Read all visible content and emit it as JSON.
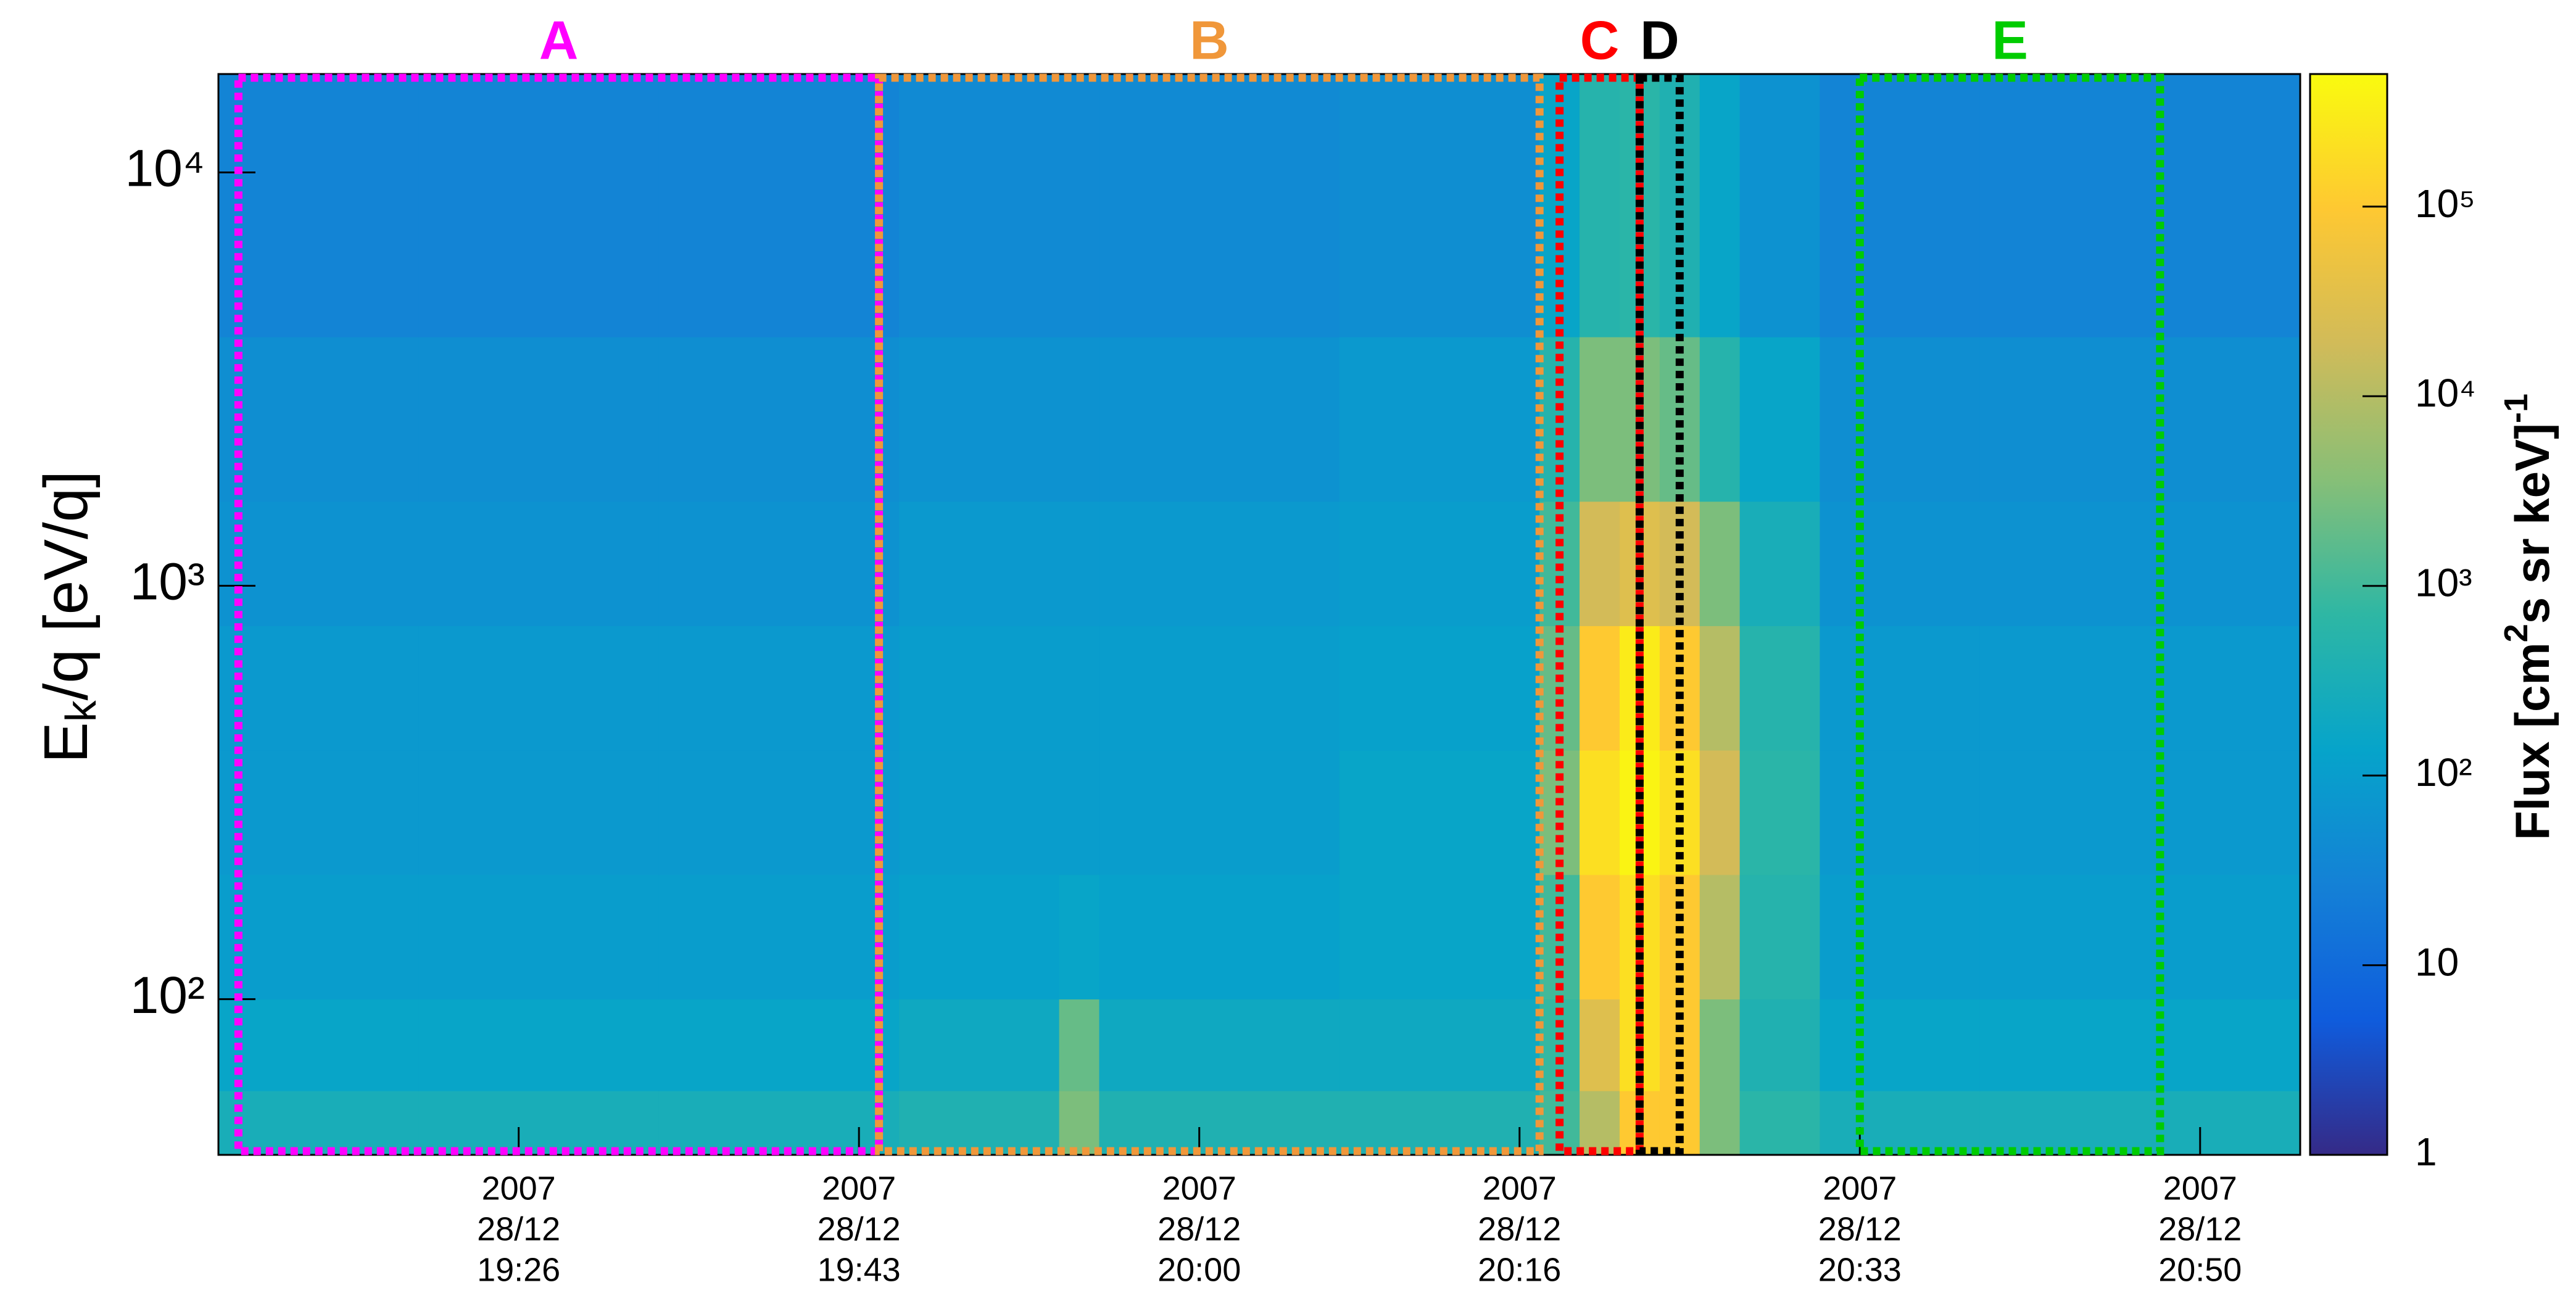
{
  "chart_data": {
    "type": "heatmap",
    "xbins": [
      "2007-12-28 19:11",
      "2007-12-28 19:21",
      "2007-12-28 19:33",
      "2007-12-28 19:45",
      "2007-12-28 19:53",
      "2007-12-28 19:55",
      "2007-12-28 20:07",
      "2007-12-28 20:17",
      "2007-12-28 20:19",
      "2007-12-28 20:21",
      "2007-12-28 20:23",
      "2007-12-28 20:25",
      "2007-12-28 20:27",
      "2007-12-28 20:31",
      "2007-12-28 20:39",
      "2007-12-28 20:55"
    ],
    "ybins": [
      42,
      60,
      100,
      200,
      400,
      800,
      1600,
      4000,
      17300
    ],
    "z": [
      [
        300,
        300,
        300,
        400,
        3000,
        400,
        400,
        1000,
        10000,
        100000,
        100000,
        3000,
        600,
        300,
        300
      ],
      [
        150,
        150,
        150,
        200,
        2000,
        200,
        200,
        800,
        30000,
        200000,
        100000,
        3000,
        400,
        150,
        150
      ],
      [
        100,
        100,
        100,
        120,
        150,
        120,
        150,
        1000,
        100000,
        200000,
        100000,
        10000,
        500,
        100,
        100
      ],
      [
        80,
        80,
        80,
        100,
        100,
        100,
        150,
        3000,
        200000,
        400000,
        200000,
        20000,
        600,
        80,
        80
      ],
      [
        80,
        80,
        80,
        100,
        100,
        100,
        120,
        2000,
        100000,
        300000,
        100000,
        10000,
        500,
        80,
        80
      ],
      [
        60,
        60,
        60,
        80,
        80,
        80,
        100,
        1000,
        20000,
        30000,
        20000,
        3000,
        300,
        60,
        60
      ],
      [
        50,
        50,
        50,
        60,
        60,
        60,
        80,
        500,
        3000,
        3000,
        2000,
        500,
        150,
        50,
        50
      ],
      [
        30,
        30,
        30,
        40,
        40,
        40,
        50,
        150,
        500,
        600,
        400,
        150,
        60,
        30,
        30
      ]
    ],
    "xlim": [
      "2007-12-28 19:11",
      "2007-12-28 20:55"
    ],
    "ylim": [
      42,
      17300
    ],
    "log_y": true,
    "yticks": [
      {
        "value": 100,
        "label": "10²"
      },
      {
        "value": 1000,
        "label": "10³"
      },
      {
        "value": 10000,
        "label": "10⁴"
      }
    ],
    "xticks": [
      {
        "value": "2007-12-28 19:26",
        "label": [
          "2007",
          "28/12",
          "19:26"
        ]
      },
      {
        "value": "2007-12-28 19:43",
        "label": [
          "2007",
          "28/12",
          "19:43"
        ]
      },
      {
        "value": "2007-12-28 20:00",
        "label": [
          "2007",
          "28/12",
          "20:00"
        ]
      },
      {
        "value": "2007-12-28 20:16",
        "label": [
          "2007",
          "28/12",
          "20:16"
        ]
      },
      {
        "value": "2007-12-28 20:33",
        "label": [
          "2007",
          "28/12",
          "20:33"
        ]
      },
      {
        "value": "2007-12-28 20:50",
        "label": [
          "2007",
          "28/12",
          "20:50"
        ]
      }
    ],
    "ylabel": [
      "E",
      "k",
      "/q [eV/q]"
    ],
    "colorbar": {
      "zlim": [
        1,
        500000
      ],
      "log": true,
      "ticks": [
        1,
        10,
        {
          "value": 100,
          "label": "10²"
        },
        {
          "value": 1000,
          "label": "10³"
        },
        {
          "value": 10000,
          "label": "10⁴"
        },
        {
          "value": 100000,
          "label": "10⁵"
        }
      ],
      "label": [
        "Flux [cm",
        "2",
        "s sr keV]",
        "-1"
      ],
      "colormap": [
        "#352a87",
        "#0f5cdd",
        "#1481d6",
        "#06a4ca",
        "#2eb7a4",
        "#87bf77",
        "#d1bb59",
        "#fec832",
        "#f9fb0e"
      ]
    },
    "regions": [
      {
        "label": "A",
        "color": "#ff00ff",
        "start": "2007-12-28 19:12",
        "end": "2007-12-28 19:44"
      },
      {
        "label": "B",
        "color": "#f0973a",
        "start": "2007-12-28 19:44",
        "end": "2007-12-28 20:17"
      },
      {
        "label": "C",
        "color": "#ff0000",
        "start": "2007-12-28 20:18",
        "end": "2007-12-28 20:22"
      },
      {
        "label": "D",
        "color": "#000000",
        "start": "2007-12-28 20:22",
        "end": "2007-12-28 20:24"
      },
      {
        "label": "E",
        "color": "#00cc00",
        "start": "2007-12-28 20:33",
        "end": "2007-12-28 20:48"
      }
    ]
  }
}
